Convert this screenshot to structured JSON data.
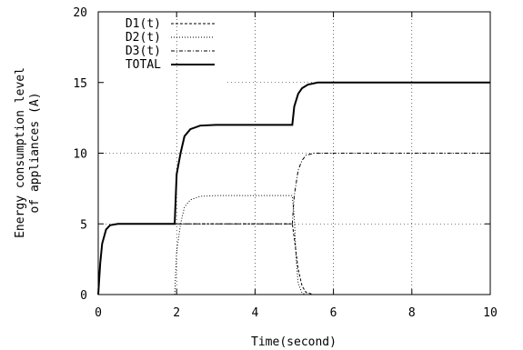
{
  "chart_data": {
    "type": "line",
    "title": "",
    "xlabel": "Time(second)",
    "ylabel_lines": [
      "Energy consumption level",
      "of appliances (A)"
    ],
    "xlim": [
      0,
      10
    ],
    "ylim": [
      0,
      20
    ],
    "x_ticks": [
      0,
      2,
      4,
      6,
      8,
      10
    ],
    "y_ticks": [
      0,
      5,
      10,
      15,
      20
    ],
    "x_tick_labels": [
      "0",
      "2",
      "4",
      "6",
      "8",
      "10"
    ],
    "y_tick_labels": [
      "0",
      "5",
      "10",
      "15",
      "20"
    ],
    "grid": true,
    "legend_position": "top-left",
    "series": [
      {
        "name": "D1(t)",
        "style": "dashed",
        "points": [
          [
            0,
            0
          ],
          [
            0.05,
            2.2
          ],
          [
            0.1,
            3.6
          ],
          [
            0.2,
            4.6
          ],
          [
            0.3,
            4.9
          ],
          [
            0.5,
            5
          ],
          [
            4.95,
            5
          ],
          [
            5.0,
            4.0
          ],
          [
            5.1,
            1.8
          ],
          [
            5.2,
            0.6
          ],
          [
            5.3,
            0.15
          ],
          [
            5.5,
            0
          ],
          [
            10,
            0
          ]
        ]
      },
      {
        "name": "D2(t)",
        "style": "dotted",
        "points": [
          [
            0,
            0
          ],
          [
            1.95,
            0
          ],
          [
            2.0,
            3.0
          ],
          [
            2.1,
            5.0
          ],
          [
            2.2,
            6.2
          ],
          [
            2.35,
            6.7
          ],
          [
            2.6,
            6.95
          ],
          [
            3.0,
            7
          ],
          [
            4.95,
            7
          ],
          [
            5.0,
            5.5
          ],
          [
            5.05,
            2.5
          ],
          [
            5.1,
            0.8
          ],
          [
            5.2,
            0.1
          ],
          [
            5.3,
            0
          ],
          [
            10,
            0
          ]
        ]
      },
      {
        "name": "D3(t)",
        "style": "dashdot",
        "points": [
          [
            0,
            0
          ],
          [
            0.05,
            2.2
          ],
          [
            0.1,
            3.6
          ],
          [
            0.2,
            4.6
          ],
          [
            0.3,
            4.9
          ],
          [
            0.5,
            5
          ],
          [
            4.95,
            5
          ],
          [
            5.0,
            7.0
          ],
          [
            5.1,
            8.8
          ],
          [
            5.2,
            9.5
          ],
          [
            5.3,
            9.85
          ],
          [
            5.5,
            10
          ],
          [
            10,
            10
          ]
        ]
      },
      {
        "name": "TOTAL",
        "style": "solid",
        "points": [
          [
            0,
            0
          ],
          [
            0.05,
            2.2
          ],
          [
            0.1,
            3.6
          ],
          [
            0.2,
            4.6
          ],
          [
            0.3,
            4.9
          ],
          [
            0.5,
            5
          ],
          [
            1.95,
            5
          ],
          [
            2.0,
            8.5
          ],
          [
            2.1,
            10.0
          ],
          [
            2.2,
            11.2
          ],
          [
            2.35,
            11.7
          ],
          [
            2.6,
            11.95
          ],
          [
            3.0,
            12
          ],
          [
            4.95,
            12
          ],
          [
            5.0,
            13.3
          ],
          [
            5.1,
            14.2
          ],
          [
            5.2,
            14.6
          ],
          [
            5.35,
            14.85
          ],
          [
            5.6,
            15
          ],
          [
            10,
            15
          ]
        ]
      }
    ]
  }
}
